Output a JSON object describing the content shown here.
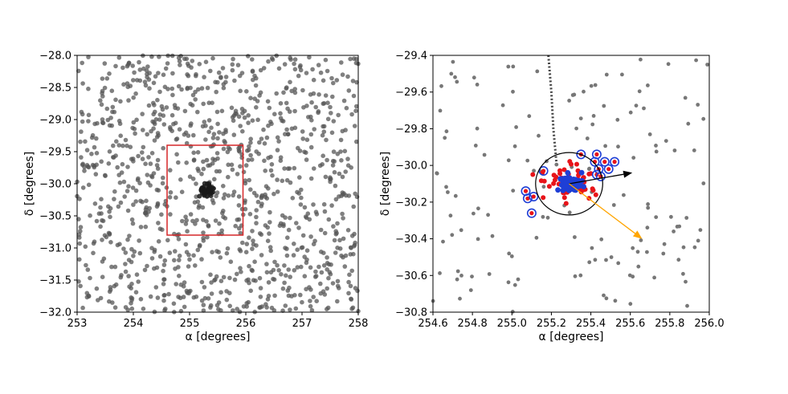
{
  "chart_data": [
    {
      "type": "scatter",
      "panel": "left",
      "title": "",
      "xlabel": "α [degrees]",
      "ylabel": "δ [degrees]",
      "xlim": [
        253,
        258
      ],
      "ylim": [
        -32.0,
        -28.0
      ],
      "x_ticks": [
        253,
        254,
        255,
        256,
        257,
        258
      ],
      "x_tick_labels": [
        "253",
        "254",
        "255",
        "256",
        "257",
        "258"
      ],
      "y_ticks": [
        -28.0,
        -28.5,
        -29.0,
        -29.5,
        -30.0,
        -30.5,
        -31.0,
        -31.5,
        -32.0
      ],
      "y_tick_labels": [
        "−28.0",
        "−28.5",
        "−29.0",
        "−29.5",
        "−30.0",
        "−30.5",
        "−31.0",
        "−31.5",
        "−32.0"
      ],
      "grid": false,
      "field_stars": {
        "color": "#555555",
        "count": 1100,
        "ra_range": [
          253,
          258
        ],
        "dec_range": [
          -32.0,
          -28.0
        ]
      },
      "cluster": {
        "center": [
          255.3,
          -30.1
        ],
        "color": "#1a1a1a",
        "count": 45
      },
      "box": {
        "ra": [
          254.6,
          255.95
        ],
        "dec": [
          -30.8,
          -29.4
        ],
        "color": "#d62728"
      }
    },
    {
      "type": "scatter",
      "panel": "right",
      "title": "",
      "xlabel": "α [degrees]",
      "ylabel": "δ [degrees]",
      "xlim": [
        254.6,
        256.0
      ],
      "ylim": [
        -30.8,
        -29.4
      ],
      "x_ticks": [
        254.6,
        254.8,
        255.0,
        255.2,
        255.4,
        255.6,
        255.8,
        256.0
      ],
      "x_tick_labels": [
        "254.6",
        "254.8",
        "255.0",
        "255.2",
        "255.4",
        "255.6",
        "255.8",
        "256.0"
      ],
      "y_ticks": [
        -29.4,
        -29.6,
        -29.8,
        -30.0,
        -30.2,
        -30.4,
        -30.6,
        -30.8
      ],
      "y_tick_labels": [
        "−29.4",
        "−29.6",
        "−29.8",
        "−30.0",
        "−30.2",
        "−30.4",
        "−30.6",
        "−30.8"
      ],
      "grid": false,
      "field_stars": {
        "color": "#777777",
        "count": 150
      },
      "members_red": {
        "color": "#e8141a",
        "count": 60
      },
      "members_blue": {
        "color": "#1f3fd6",
        "count": 70
      },
      "circled_outliers": [
        [
          255.35,
          -29.94
        ],
        [
          255.43,
          -29.94
        ],
        [
          255.42,
          -29.98
        ],
        [
          255.47,
          -29.98
        ],
        [
          255.52,
          -29.98
        ],
        [
          255.44,
          -30.02
        ],
        [
          255.49,
          -30.02
        ],
        [
          255.43,
          -30.05
        ],
        [
          255.45,
          -30.06
        ],
        [
          255.16,
          -30.03
        ],
        [
          255.07,
          -30.14
        ],
        [
          255.08,
          -30.18
        ],
        [
          255.11,
          -30.17
        ],
        [
          255.1,
          -30.26
        ]
      ],
      "circled_color": "#1f3fd6",
      "circle": {
        "center": [
          255.29,
          -30.1
        ],
        "radius_deg": 0.17,
        "color": "#000000"
      },
      "arrow_black": {
        "from": [
          255.29,
          -30.1
        ],
        "to": [
          255.61,
          -30.04
        ],
        "color": "#000000"
      },
      "arrow_orange": {
        "from": [
          255.29,
          -30.1
        ],
        "to": [
          255.66,
          -30.4
        ],
        "color": "#ffa500"
      },
      "dotted_track": {
        "points": [
          [
            255.185,
            -29.4
          ],
          [
            255.2,
            -29.6
          ],
          [
            255.21,
            -29.8
          ],
          [
            255.225,
            -29.98
          ]
        ],
        "color": "#444444"
      }
    }
  ]
}
